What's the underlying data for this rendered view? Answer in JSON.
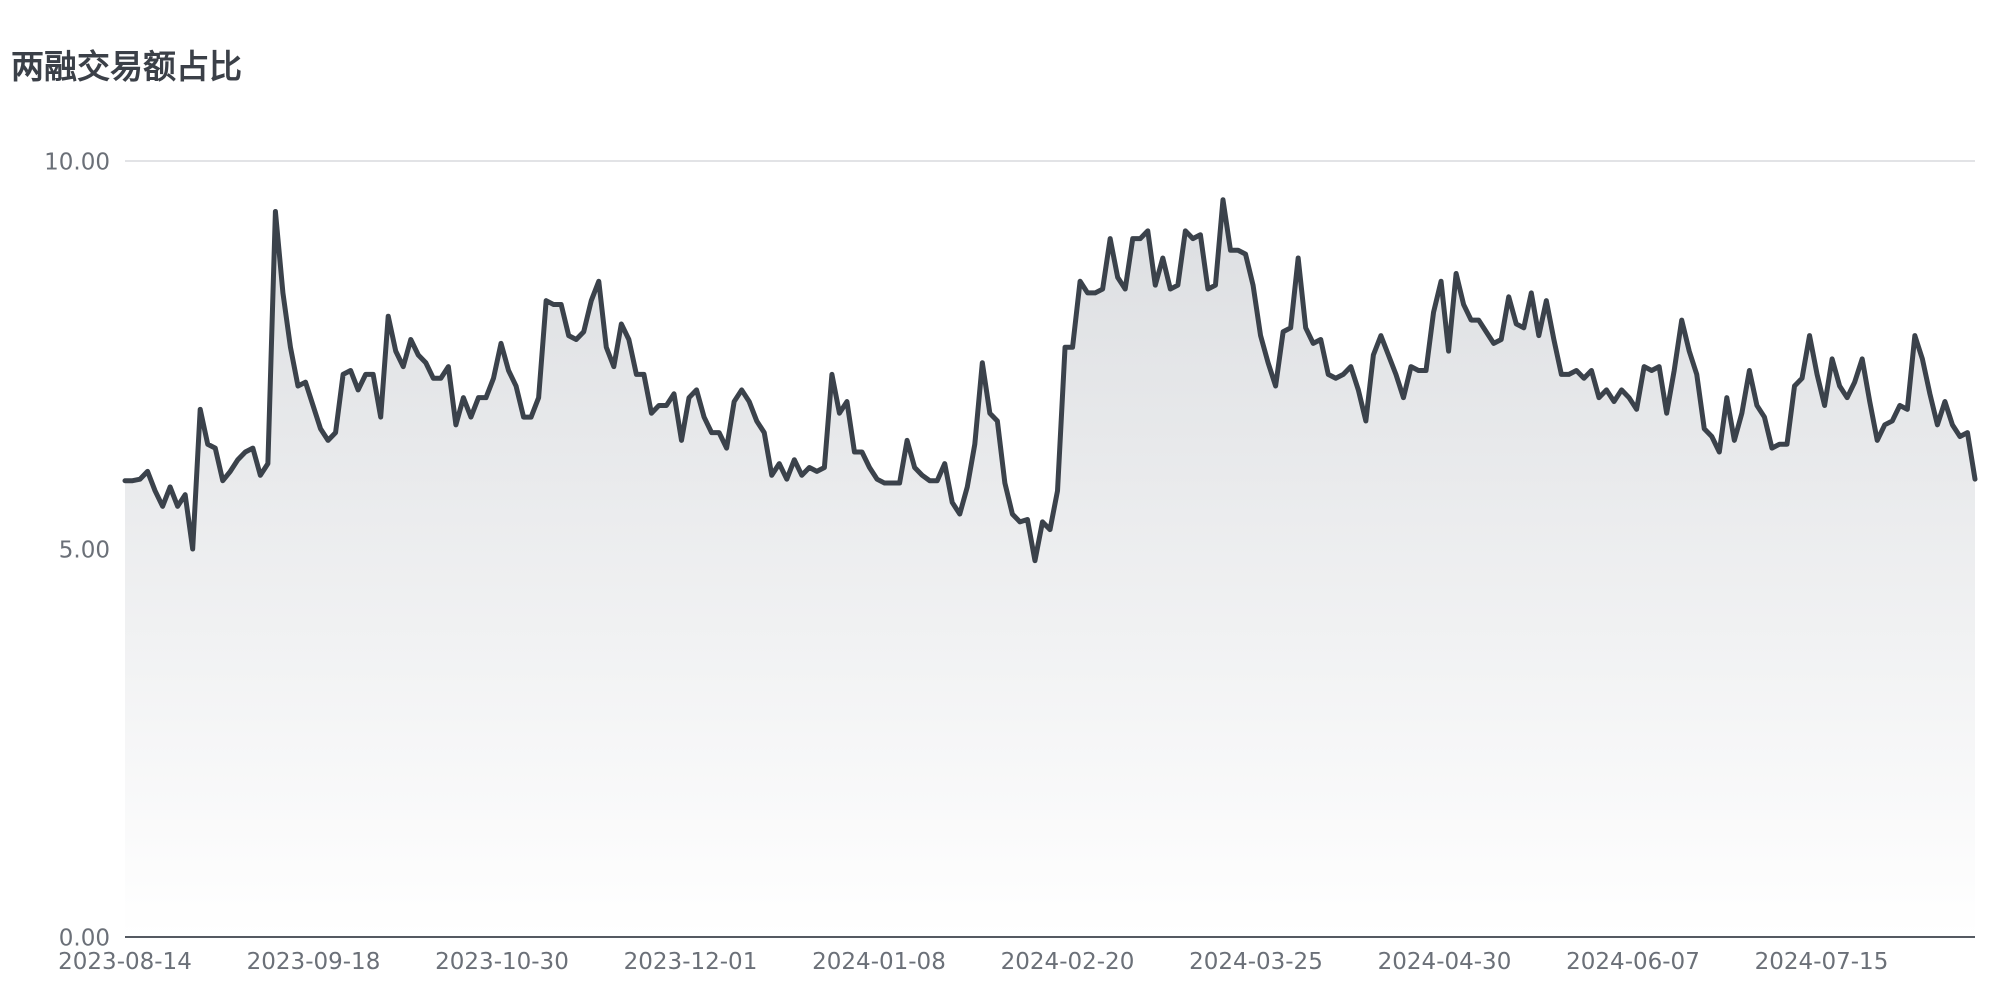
{
  "chart_data": {
    "type": "area",
    "title": "两融交易额占比",
    "xlabel": "",
    "ylabel": "",
    "ylim": [
      0,
      10
    ],
    "y_ticks": [
      "0.00",
      "5.00",
      "10.00"
    ],
    "x_ticks": [
      "2023-08-14",
      "2023-09-18",
      "2023-10-30",
      "2023-12-01",
      "2024-01-08",
      "2024-02-20",
      "2024-03-25",
      "2024-04-30",
      "2024-06-07",
      "2024-07-15"
    ],
    "grid": true,
    "legend": "none",
    "colors": {
      "line": "#3b424b",
      "fill_top": "#dcdee1",
      "fill_bottom": "#ffffff",
      "grid": "#d8dadd",
      "axis": "#555a62"
    },
    "series": [
      {
        "values": [
          5.88,
          5.88,
          5.9,
          6.0,
          5.75,
          5.55,
          5.8,
          5.55,
          5.7,
          5.0,
          6.8,
          6.35,
          6.3,
          5.88,
          6.0,
          6.15,
          6.25,
          6.3,
          5.95,
          6.1,
          9.35,
          8.3,
          7.6,
          7.1,
          7.15,
          6.85,
          6.55,
          6.4,
          6.5,
          7.25,
          7.3,
          7.05,
          7.25,
          7.25,
          6.7,
          8.0,
          7.55,
          7.35,
          7.7,
          7.5,
          7.4,
          7.2,
          7.2,
          7.35,
          6.6,
          6.95,
          6.7,
          6.95,
          6.95,
          7.2,
          7.65,
          7.3,
          7.1,
          6.7,
          6.7,
          6.95,
          8.2,
          8.15,
          8.15,
          7.75,
          7.7,
          7.8,
          8.2,
          8.45,
          7.6,
          7.35,
          7.9,
          7.7,
          7.25,
          7.25,
          6.75,
          6.85,
          6.85,
          7.0,
          6.4,
          6.95,
          7.05,
          6.7,
          6.5,
          6.5,
          6.3,
          6.9,
          7.05,
          6.9,
          6.65,
          6.5,
          5.95,
          6.1,
          5.9,
          6.15,
          5.95,
          6.05,
          6.0,
          6.05,
          7.25,
          6.75,
          6.9,
          6.25,
          6.25,
          6.05,
          5.9,
          5.85,
          5.85,
          5.85,
          6.4,
          6.05,
          5.95,
          5.88,
          5.88,
          6.1,
          5.6,
          5.45,
          5.8,
          6.35,
          7.4,
          6.75,
          6.65,
          5.85,
          5.45,
          5.35,
          5.38,
          4.85,
          5.35,
          5.25,
          5.75,
          7.6,
          7.6,
          8.45,
          8.3,
          8.3,
          8.35,
          9.0,
          8.5,
          8.35,
          9.0,
          9.0,
          9.1,
          8.4,
          8.75,
          8.35,
          8.4,
          9.1,
          9.0,
          9.05,
          8.35,
          8.4,
          9.5,
          8.85,
          8.85,
          8.8,
          8.4,
          7.75,
          7.4,
          7.1,
          7.8,
          7.85,
          8.75,
          7.85,
          7.65,
          7.7,
          7.25,
          7.2,
          7.25,
          7.35,
          7.05,
          6.65,
          7.5,
          7.75,
          7.5,
          7.25,
          6.95,
          7.35,
          7.3,
          7.3,
          8.05,
          8.45,
          7.55,
          8.55,
          8.15,
          7.95,
          7.95,
          7.8,
          7.65,
          7.7,
          8.25,
          7.9,
          7.85,
          8.3,
          7.75,
          8.2,
          7.7,
          7.25,
          7.25,
          7.3,
          7.2,
          7.3,
          6.95,
          7.05,
          6.9,
          7.05,
          6.95,
          6.8,
          7.35,
          7.3,
          7.35,
          6.75,
          7.3,
          7.95,
          7.55,
          7.25,
          6.55,
          6.45,
          6.25,
          6.95,
          6.4,
          6.75,
          7.3,
          6.85,
          6.7,
          6.3,
          6.35,
          6.35,
          7.1,
          7.2,
          7.75,
          7.25,
          6.85,
          7.45,
          7.1,
          6.95,
          7.15,
          7.45,
          6.9,
          6.4,
          6.6,
          6.65,
          6.85,
          6.8,
          7.75,
          7.45,
          7.0,
          6.6,
          6.9,
          6.6,
          6.45,
          6.5,
          5.9
        ]
      }
    ]
  }
}
